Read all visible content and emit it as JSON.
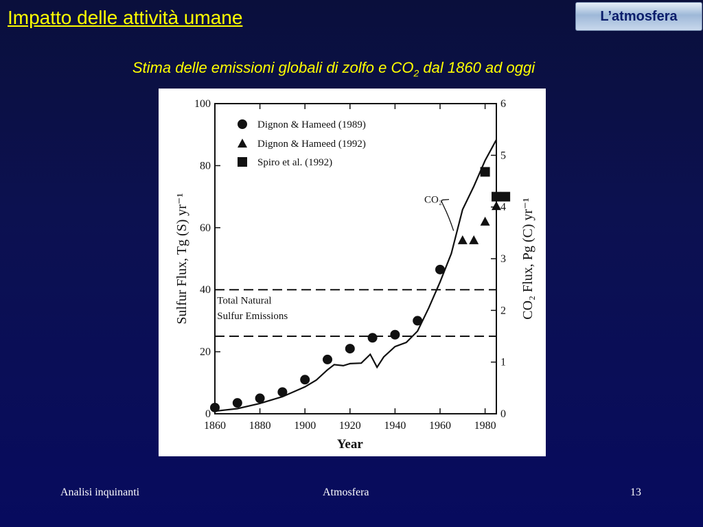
{
  "header": {
    "title": "Impatto delle attività umane",
    "section_tab": "L’atmosfera"
  },
  "subtitle": {
    "before": "Stima delle emissioni globali di zolfo e CO",
    "sub": "2",
    "after": " dal 1860 ad oggi"
  },
  "footer": {
    "left": "Analisi inquinanti",
    "center": "Atmosfera",
    "right": "13"
  },
  "chart_data": {
    "type": "scatter",
    "xlabel": "Year",
    "ylabel_left": "Sulfur   Flux,   Tg (S) yr⁻¹",
    "ylabel_right": "CO₂   Flux,   Pg (C) yr⁻¹",
    "xlim": [
      1860,
      1985
    ],
    "ylim_left": [
      0,
      100
    ],
    "ylim_right": [
      0,
      6
    ],
    "x_ticks": [
      1860,
      1880,
      1900,
      1920,
      1940,
      1960,
      1980
    ],
    "y_ticks_left": [
      0,
      20,
      40,
      60,
      80,
      100
    ],
    "y_ticks_right": [
      0,
      1,
      2,
      3,
      4,
      5,
      6
    ],
    "legend": [
      {
        "marker": "circle",
        "label": "Dignon & Hameed (1989)"
      },
      {
        "marker": "triangle",
        "label": "Dignon & Hameed (1992)"
      },
      {
        "marker": "square",
        "label": "Spiro et al.  (1992)"
      }
    ],
    "series": [
      {
        "name": "Dignon & Hameed (1989)",
        "marker": "circle",
        "axis": "left",
        "x": [
          1860,
          1870,
          1880,
          1890,
          1900,
          1910,
          1920,
          1930,
          1940,
          1950,
          1960
        ],
        "y": [
          2,
          3.5,
          5,
          7,
          11,
          17.5,
          21,
          24.5,
          25.5,
          30,
          46.5
        ]
      },
      {
        "name": "Dignon & Hameed (1992)",
        "marker": "triangle",
        "axis": "left",
        "x": [
          1970,
          1975,
          1980,
          1985
        ],
        "y": [
          56,
          56,
          62,
          67
        ]
      },
      {
        "name": "Spiro et al.  (1992)",
        "marker": "square",
        "axis": "left",
        "x": [
          1980,
          1985,
          1989
        ],
        "y": [
          78,
          70,
          70
        ]
      },
      {
        "name": "CO2",
        "type": "line",
        "axis": "right",
        "x": [
          1860,
          1870,
          1880,
          1890,
          1900,
          1905,
          1910,
          1913,
          1917,
          1920,
          1925,
          1929,
          1932,
          1935,
          1940,
          1945,
          1950,
          1955,
          1960,
          1965,
          1970,
          1975,
          1980,
          1985
        ],
        "y": [
          0.05,
          0.1,
          0.2,
          0.33,
          0.52,
          0.65,
          0.85,
          0.95,
          0.93,
          0.97,
          0.98,
          1.15,
          0.9,
          1.1,
          1.3,
          1.38,
          1.6,
          2.05,
          2.55,
          3.1,
          3.95,
          4.4,
          4.9,
          5.3
        ]
      }
    ],
    "reference_lines": [
      {
        "axis": "left",
        "y": 40
      },
      {
        "axis": "left",
        "y": 25
      }
    ],
    "annotations": [
      {
        "text": "Total  Natural",
        "x": 1861,
        "y": 35.5,
        "axis": "left"
      },
      {
        "text": "Sulfur  Emissions",
        "x": 1861,
        "y": 30.5,
        "axis": "left"
      },
      {
        "text": "CO₂",
        "x": 1953,
        "y": 68,
        "axis": "left",
        "points_to": "CO2 line"
      }
    ]
  }
}
